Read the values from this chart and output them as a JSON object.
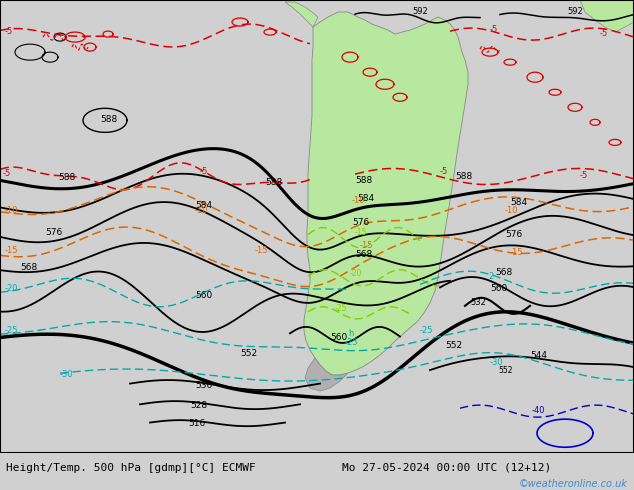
{
  "title_left": "Height/Temp. 500 hPa [gdmp][°C] ECMWF",
  "title_right": "Mo 27-05-2024 00:00 UTC (12+12)",
  "watermark": "©weatheronline.co.uk",
  "bg_color": "#d0d0d0",
  "land_color": "#b8e8a0",
  "land_edge_color": "#888888",
  "ocean_color": "#d0d0d0",
  "black": "#000000",
  "red": "#dd0000",
  "orange": "#dd6600",
  "cyan": "#00aaaa",
  "green_lime": "#88cc00",
  "blue": "#0000cc",
  "white": "#ffffff",
  "watermark_color": "#4488cc",
  "fig_w": 6.34,
  "fig_h": 4.9,
  "dpi": 100
}
